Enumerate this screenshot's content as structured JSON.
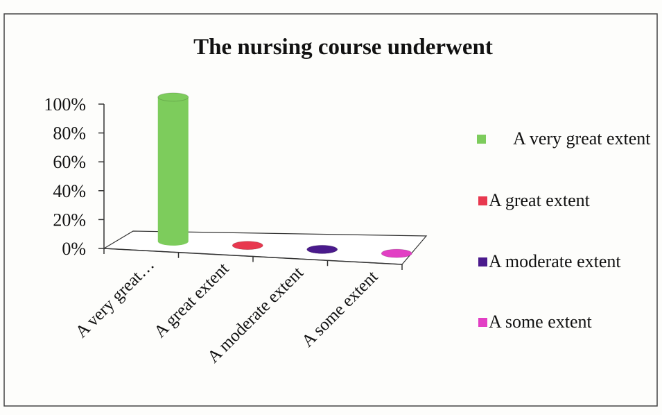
{
  "chart_data": {
    "type": "bar3d",
    "title": "The nursing course underwent",
    "categories": [
      "A very great…",
      "A great extent",
      "A moderate extent",
      "A some extent"
    ],
    "values": [
      100,
      0,
      0,
      0
    ],
    "colors": [
      "#7dcc5c",
      "#e8384f",
      "#4a1a8c",
      "#e23fc4"
    ],
    "legend": [
      "A very great extent",
      "A great extent",
      "A moderate extent",
      "A some extent"
    ],
    "ylim": [
      0,
      100
    ],
    "yticks": [
      {
        "value": 0,
        "label": "0%"
      },
      {
        "value": 20,
        "label": "20%"
      },
      {
        "value": 40,
        "label": "40%"
      },
      {
        "value": 60,
        "label": "60%"
      },
      {
        "value": 80,
        "label": "80%"
      },
      {
        "value": 100,
        "label": "100%"
      }
    ]
  }
}
